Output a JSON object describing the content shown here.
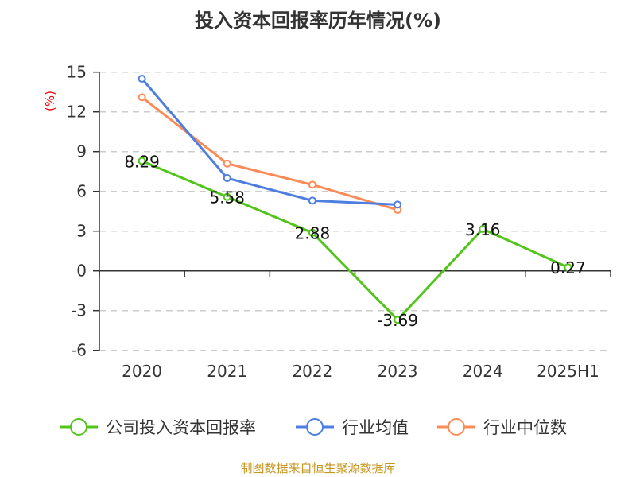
{
  "chart_data": {
    "type": "line",
    "title": "投入资本回报率历年情况(%)",
    "ylabel": "(%)",
    "categories": [
      "2020",
      "2021",
      "2022",
      "2023",
      "2024",
      "2025H1"
    ],
    "ylim": [
      -6,
      15
    ],
    "yticks": [
      -6,
      -3,
      0,
      3,
      6,
      9,
      12,
      15
    ],
    "grid": true,
    "legend_position": "bottom",
    "series": [
      {
        "name": "公司投入资本回报率",
        "color": "#52c41a",
        "values": [
          8.29,
          5.58,
          2.88,
          -3.69,
          3.16,
          0.27
        ],
        "labels": [
          "8.29",
          "5.58",
          "2.88",
          "-3.69",
          "3.16",
          "0.27"
        ]
      },
      {
        "name": "行业均值",
        "color": "#4e7fe0",
        "values": [
          14.5,
          7.0,
          5.3,
          5.0,
          null,
          null
        ]
      },
      {
        "name": "行业中位数",
        "color": "#fb8c57",
        "values": [
          13.1,
          8.1,
          6.5,
          4.6,
          null,
          null
        ]
      }
    ]
  },
  "source": "制图数据来自恒生聚源数据库"
}
